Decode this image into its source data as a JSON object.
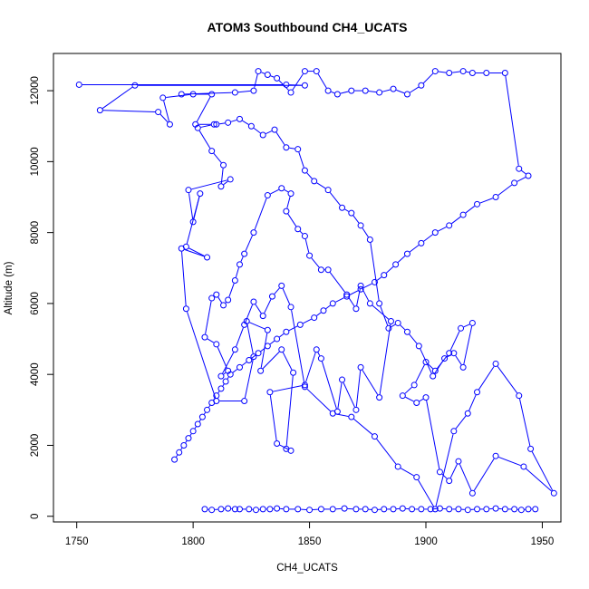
{
  "chart_data": {
    "type": "line",
    "title": "ATOM3 Southbound CH4_UCATS",
    "xlabel": "CH4_UCATS",
    "ylabel": "Altitude (m)",
    "xlim": [
      1740,
      1958
    ],
    "ylim": [
      -160,
      13050
    ],
    "xticks": [
      "1750",
      "1800",
      "1850",
      "1900",
      "1950"
    ],
    "yticks": [
      "0",
      "2000",
      "4000",
      "6000",
      "8000",
      "10000",
      "12000"
    ],
    "grid": false,
    "legend": "none",
    "series_color": "#0000ff",
    "marker": "open-circle",
    "series": [
      {
        "x": [
          1751,
          1840,
          1848,
          1775,
          1760,
          1785,
          1790,
          1787,
          1800,
          1808,
          1801,
          1809,
          1802,
          1808,
          1813,
          1812,
          1816,
          1798,
          1800,
          1803,
          1797,
          1806,
          1795,
          1797,
          1810,
          1822,
          1826,
          1823,
          1832,
          1829,
          1838,
          1843,
          1840,
          1842,
          1836,
          1833,
          1848,
          1853,
          1855,
          1862,
          1864,
          1870,
          1872,
          1880,
          1885,
          1876,
          1872,
          1870,
          1866,
          1858,
          1855,
          1850,
          1848,
          1845,
          1840,
          1842,
          1838,
          1832,
          1826,
          1822,
          1820,
          1818,
          1815,
          1813,
          1810,
          1808,
          1805,
          1810,
          1815,
          1812,
          1818,
          1822,
          1826,
          1830,
          1834,
          1838,
          1842,
          1848,
          1860,
          1868,
          1878,
          1888,
          1896,
          1904,
          1912,
          1918,
          1922,
          1930,
          1940,
          1945,
          1955,
          1942,
          1930,
          1920,
          1914,
          1910,
          1906,
          1900,
          1896,
          1890,
          1895,
          1900,
          1904,
          1910,
          1915,
          1920,
          1916,
          1912,
          1908,
          1903,
          1897,
          1892,
          1888,
          1884,
          1880,
          1876,
          1872,
          1868,
          1864,
          1858,
          1852,
          1848,
          1845,
          1840,
          1835,
          1830,
          1825,
          1820,
          1815,
          1810
        ],
        "y": [
          12170,
          12170,
          12150,
          12150,
          11450,
          11400,
          11050,
          11800,
          11900,
          11900,
          11050,
          11050,
          10950,
          10300,
          9900,
          9300,
          9500,
          9200,
          8300,
          9100,
          7600,
          7300,
          7550,
          5850,
          3250,
          3250,
          4500,
          5500,
          5250,
          4100,
          4700,
          4050,
          1900,
          1850,
          2050,
          3500,
          3700,
          4700,
          4450,
          2950,
          3850,
          3000,
          4200,
          3350,
          5500,
          6000,
          6500,
          5850,
          6250,
          6950,
          6950,
          7350,
          7900,
          8100,
          8600,
          9100,
          9250,
          9050,
          8000,
          7400,
          7100,
          6650,
          6100,
          5950,
          6250,
          6150,
          5050,
          4850,
          4100,
          3950,
          4700,
          5400,
          6050,
          5650,
          6200,
          6500,
          5900,
          3650,
          2900,
          2800,
          2250,
          1400,
          1100,
          200,
          2400,
          2900,
          3500,
          4300,
          3400,
          1900,
          650,
          1400,
          1700,
          650,
          1550,
          1000,
          1250,
          3350,
          3200,
          3400,
          3700,
          4350,
          4100,
          4600,
          5300,
          5450,
          4200,
          4600,
          4450,
          3950,
          4800,
          5200,
          5450,
          5300,
          6000,
          7800,
          8200,
          8550,
          8700,
          9200,
          9450,
          9750,
          10350,
          10400,
          10900,
          10750,
          11000,
          11200,
          11100,
          11050
        ]
      },
      {
        "x": [
          1795,
          1818,
          1826,
          1828,
          1832,
          1836,
          1842,
          1848,
          1853,
          1858,
          1862,
          1868,
          1874,
          1880,
          1886,
          1892,
          1898,
          1904,
          1910,
          1916,
          1920,
          1926,
          1934,
          1940,
          1944,
          1938,
          1930,
          1922,
          1916,
          1910,
          1904,
          1898,
          1892,
          1887,
          1882,
          1878,
          1872,
          1866,
          1860,
          1856,
          1852,
          1846,
          1840,
          1836,
          1832,
          1828,
          1824,
          1820,
          1816,
          1814,
          1812,
          1810,
          1808,
          1806,
          1804,
          1802,
          1800,
          1798,
          1796,
          1794,
          1792
        ],
        "y": [
          11900,
          11950,
          12000,
          12550,
          12450,
          12350,
          11950,
          12550,
          12550,
          12000,
          11900,
          12000,
          12000,
          11950,
          12050,
          11900,
          12150,
          12550,
          12500,
          12550,
          12500,
          12500,
          12500,
          9800,
          9600,
          9400,
          9000,
          8800,
          8500,
          8200,
          8000,
          7700,
          7400,
          7100,
          6800,
          6600,
          6400,
          6200,
          6000,
          5800,
          5600,
          5400,
          5200,
          5000,
          4800,
          4600,
          4400,
          4200,
          4000,
          3800,
          3600,
          3400,
          3200,
          3000,
          2800,
          2600,
          2400,
          2200,
          2000,
          1800,
          1600
        ]
      },
      {
        "x": [
          1805,
          1808,
          1812,
          1815,
          1818,
          1820,
          1824,
          1827,
          1830,
          1833,
          1836,
          1840,
          1845,
          1850,
          1855,
          1860,
          1865,
          1870,
          1874,
          1878,
          1882,
          1886,
          1890,
          1894,
          1898,
          1902,
          1906,
          1910,
          1914,
          1918,
          1922,
          1926,
          1930,
          1934,
          1938,
          1941,
          1944,
          1947
        ],
        "y": [
          200,
          180,
          200,
          220,
          200,
          200,
          200,
          180,
          200,
          200,
          220,
          200,
          200,
          180,
          200,
          200,
          220,
          200,
          200,
          180,
          200,
          200,
          220,
          200,
          200,
          200,
          220,
          200,
          200,
          180,
          200,
          200,
          220,
          200,
          200,
          180,
          200,
          200
        ]
      }
    ]
  }
}
